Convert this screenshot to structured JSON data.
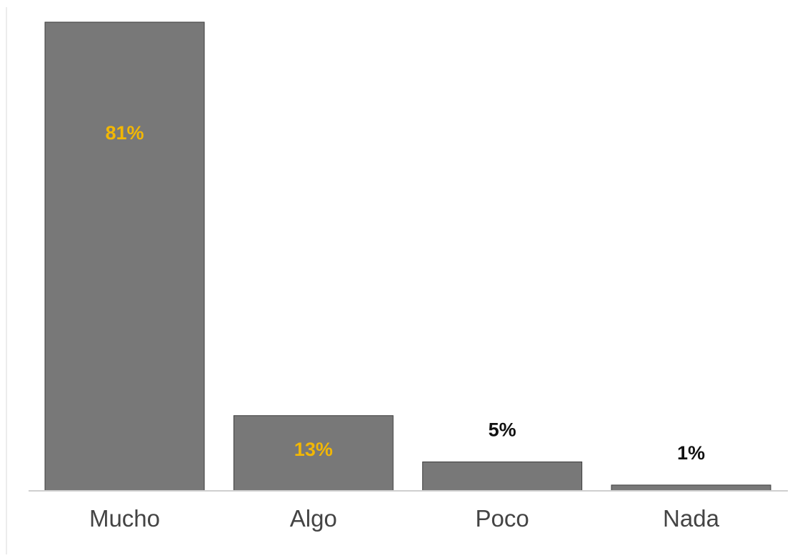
{
  "chart_data": {
    "type": "bar",
    "title": "",
    "xlabel": "",
    "ylabel": "",
    "categories": [
      "Mucho",
      "Algo",
      "Poco",
      "Nada"
    ],
    "values": [
      81,
      13,
      5,
      1
    ],
    "labels": [
      "81%",
      "13%",
      "5%",
      "1%"
    ],
    "label_inside": [
      true,
      true,
      false,
      false
    ],
    "ylim": [
      0,
      81
    ],
    "grid": false,
    "legend": "none"
  },
  "colors": {
    "bar_fill": "#787878",
    "bar_stroke": "#3c3c3c",
    "label_inside": "#f2b705",
    "label_outside": "#111111",
    "axis_line": "#cfcfcf",
    "category_text": "#444444"
  }
}
